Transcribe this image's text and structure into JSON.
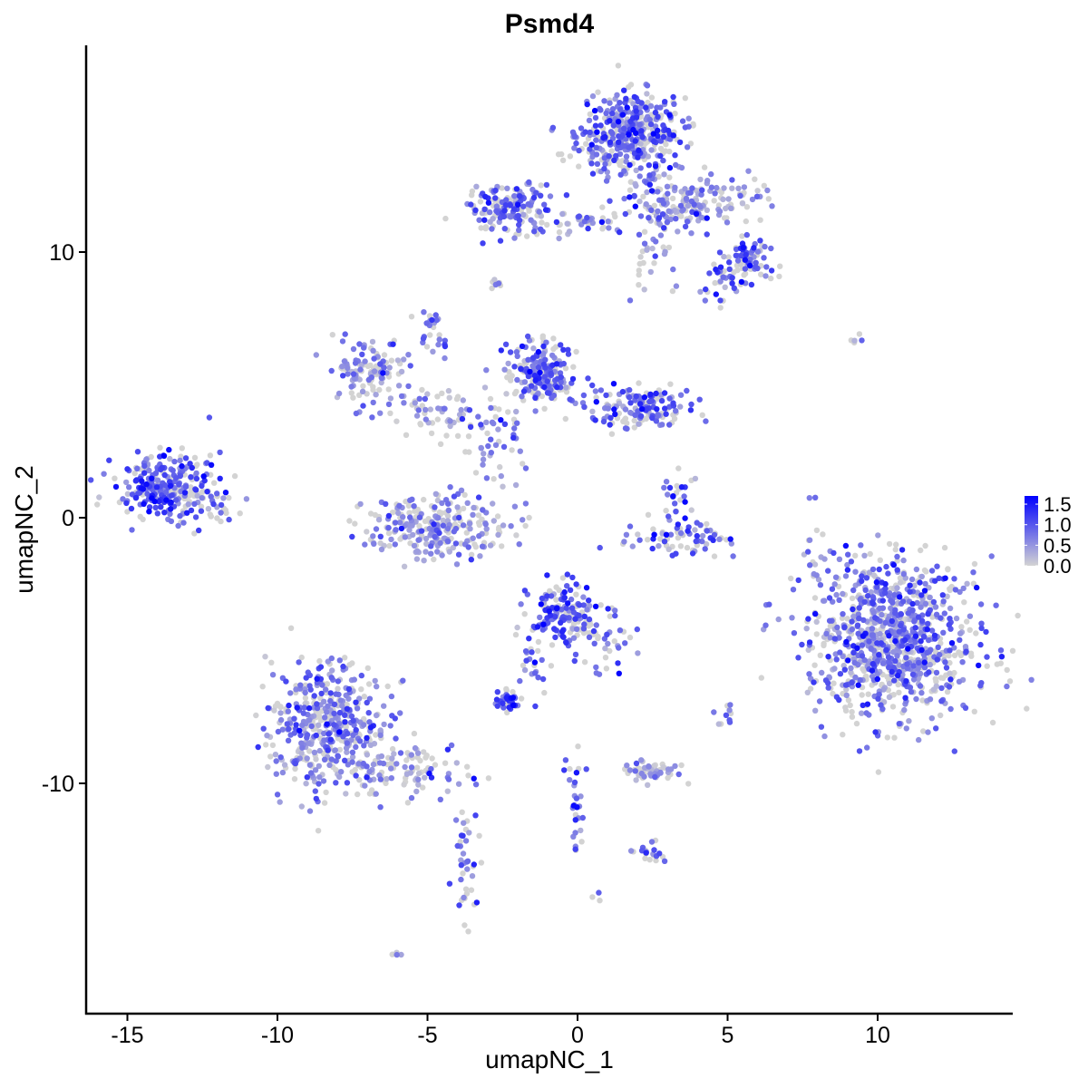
{
  "chart_data": {
    "type": "scatter",
    "title": "Psmd4",
    "xlabel": "umapNC_1",
    "ylabel": "umapNC_2",
    "xlim": [
      -16.2,
      14.6
    ],
    "ylim": [
      -18.6,
      17.9
    ],
    "xticks": [
      -15,
      -10,
      -5,
      0,
      5,
      10
    ],
    "yticks": [
      -10,
      0,
      10
    ],
    "xtick_labels": [
      "-15",
      "-10",
      "-5",
      "0",
      "5",
      "10"
    ],
    "ytick_labels": [
      "-10",
      "0",
      "10"
    ],
    "grid": false,
    "legend": {
      "placement": "right",
      "type": "colorbar",
      "ticks": [
        0.0,
        0.5,
        1.0,
        1.5
      ],
      "tick_labels": [
        "0.0",
        "0.5",
        "1.0",
        "1.5"
      ],
      "range": [
        0,
        1.7
      ],
      "low_color": "#d3d3d3",
      "high_color": "#0000ff"
    },
    "clusters": [
      {
        "center": [
          1.75,
          14.4
        ],
        "spread": [
          0.9,
          0.8
        ],
        "n": 420,
        "mean_expr": 0.8
      },
      {
        "center": [
          -2.2,
          11.6
        ],
        "spread": [
          0.7,
          0.45
        ],
        "n": 160,
        "mean_expr": 0.8
      },
      {
        "center": [
          0.4,
          11.1
        ],
        "spread": [
          0.8,
          0.2
        ],
        "n": 40,
        "mean_expr": 0.7
      },
      {
        "center": [
          3.9,
          11.9
        ],
        "spread": [
          1.1,
          0.5
        ],
        "n": 170,
        "mean_expr": 0.5
      },
      {
        "center": [
          5.6,
          9.6
        ],
        "spread": [
          0.4,
          0.5
        ],
        "n": 80,
        "mean_expr": 0.8
      },
      {
        "center": [
          4.9,
          8.9
        ],
        "spread": [
          0.4,
          0.3
        ],
        "n": 30,
        "mean_expr": 0.9
      },
      {
        "center": [
          2.6,
          10.8
        ],
        "spread": [
          0.5,
          1.2
        ],
        "n": 50,
        "mean_expr": 0.5
      },
      {
        "center": [
          -6.9,
          5.6
        ],
        "spread": [
          0.6,
          0.6
        ],
        "n": 120,
        "mean_expr": 0.5
      },
      {
        "center": [
          -4.8,
          6.8
        ],
        "spread": [
          0.3,
          0.5
        ],
        "n": 25,
        "mean_expr": 0.9
      },
      {
        "center": [
          -4.6,
          4.0
        ],
        "spread": [
          1.0,
          0.5
        ],
        "n": 60,
        "mean_expr": 0.5
      },
      {
        "center": [
          -1.2,
          5.4
        ],
        "spread": [
          0.6,
          0.6
        ],
        "n": 200,
        "mean_expr": 0.9
      },
      {
        "center": [
          2.1,
          4.1
        ],
        "spread": [
          0.8,
          0.4
        ],
        "n": 160,
        "mean_expr": 0.8
      },
      {
        "center": [
          -2.8,
          2.8
        ],
        "spread": [
          0.8,
          0.8
        ],
        "n": 50,
        "mean_expr": 0.5
      },
      {
        "center": [
          -13.8,
          1.2
        ],
        "spread": [
          0.8,
          0.6
        ],
        "n": 260,
        "mean_expr": 0.9
      },
      {
        "center": [
          -12.4,
          0.5
        ],
        "spread": [
          0.5,
          0.6
        ],
        "n": 40,
        "mean_expr": 0.7
      },
      {
        "center": [
          -4.7,
          -0.3
        ],
        "spread": [
          1.2,
          0.6
        ],
        "n": 260,
        "mean_expr": 0.5
      },
      {
        "center": [
          3.6,
          -0.8
        ],
        "spread": [
          1.0,
          0.3
        ],
        "n": 70,
        "mean_expr": 0.8
      },
      {
        "center": [
          3.2,
          0.8
        ],
        "spread": [
          0.3,
          0.5
        ],
        "n": 25,
        "mean_expr": 0.8
      },
      {
        "center": [
          10.5,
          -4.6
        ],
        "spread": [
          1.4,
          1.5
        ],
        "n": 950,
        "mean_expr": 0.7
      },
      {
        "center": [
          -0.4,
          -3.7
        ],
        "spread": [
          0.6,
          0.6
        ],
        "n": 170,
        "mean_expr": 0.9
      },
      {
        "center": [
          0.9,
          -4.8
        ],
        "spread": [
          0.5,
          0.5
        ],
        "n": 30,
        "mean_expr": 0.9
      },
      {
        "center": [
          -1.4,
          -5.5
        ],
        "spread": [
          0.3,
          0.6
        ],
        "n": 20,
        "mean_expr": 1.0
      },
      {
        "center": [
          -8.3,
          -7.8
        ],
        "spread": [
          1.0,
          1.2
        ],
        "n": 460,
        "mean_expr": 0.6
      },
      {
        "center": [
          -5.7,
          -9.5
        ],
        "spread": [
          1.1,
          0.5
        ],
        "n": 100,
        "mean_expr": 0.5
      },
      {
        "center": [
          -3.7,
          -13.2
        ],
        "spread": [
          0.25,
          1.3
        ],
        "n": 40,
        "mean_expr": 0.8
      },
      {
        "center": [
          -2.4,
          -6.9
        ],
        "spread": [
          0.3,
          0.2
        ],
        "n": 40,
        "mean_expr": 1.2
      },
      {
        "center": [
          2.5,
          -9.6
        ],
        "spread": [
          0.5,
          0.2
        ],
        "n": 60,
        "mean_expr": 0.4
      },
      {
        "center": [
          0.0,
          -11.0
        ],
        "spread": [
          0.2,
          1.0
        ],
        "n": 30,
        "mean_expr": 0.8
      },
      {
        "center": [
          2.4,
          -12.6
        ],
        "spread": [
          0.3,
          0.2
        ],
        "n": 20,
        "mean_expr": 0.9
      },
      {
        "center": [
          5.0,
          -7.4
        ],
        "spread": [
          0.15,
          0.3
        ],
        "n": 10,
        "mean_expr": 1.0
      },
      {
        "center": [
          7.9,
          -1.0
        ],
        "spread": [
          0.2,
          1.0
        ],
        "n": 12,
        "mean_expr": 0.4
      },
      {
        "center": [
          9.5,
          6.7
        ],
        "spread": [
          0.2,
          0.1
        ],
        "n": 5,
        "mean_expr": 0.4
      },
      {
        "center": [
          -6.0,
          -16.4
        ],
        "spread": [
          0.1,
          0.1
        ],
        "n": 4,
        "mean_expr": 0.8
      },
      {
        "center": [
          -2.7,
          8.8
        ],
        "spread": [
          0.15,
          0.1
        ],
        "n": 8,
        "mean_expr": 0.7
      },
      {
        "center": [
          0.6,
          -14.3
        ],
        "spread": [
          0.1,
          0.1
        ],
        "n": 3,
        "mean_expr": 0.7
      }
    ]
  }
}
